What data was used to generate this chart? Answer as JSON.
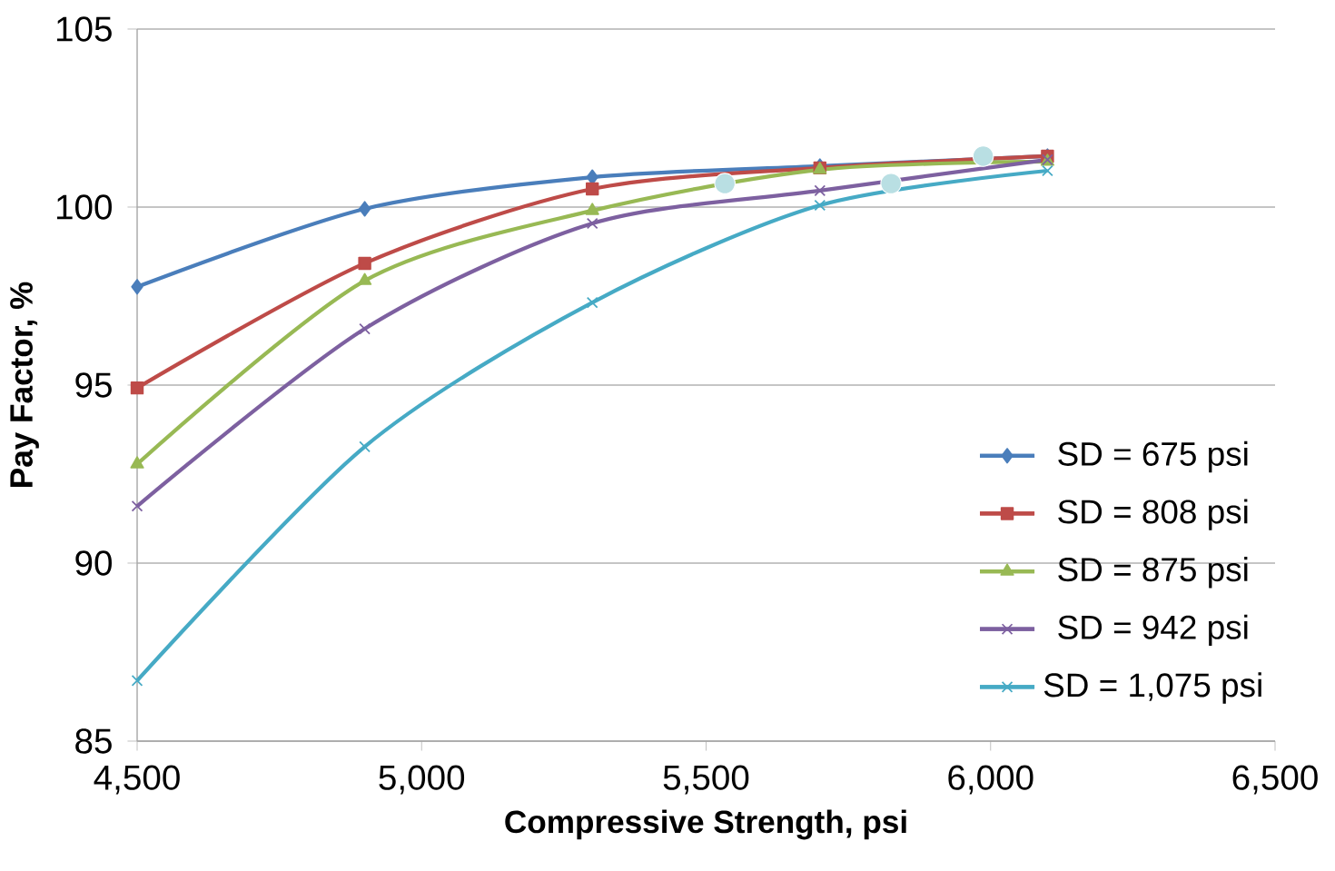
{
  "chart_data": {
    "type": "line",
    "xlabel": "Compressive Strength, psi",
    "ylabel": "Pay Factor, %",
    "x": [
      4500,
      4900,
      5300,
      5700,
      6100
    ],
    "series": [
      {
        "name": "SD = 675 psi",
        "color": "#4a7ebb",
        "marker": "diamond",
        "values": [
          97.76,
          99.95,
          100.84,
          101.15,
          101.43
        ]
      },
      {
        "name": "SD = 808 psi",
        "color": "#be4b48",
        "marker": "square",
        "values": [
          94.92,
          98.42,
          100.51,
          101.1,
          101.43
        ]
      },
      {
        "name": "SD = 875 psi",
        "color": "#98b954",
        "marker": "triangle",
        "values": [
          92.78,
          97.93,
          99.9,
          101.05,
          101.28
        ]
      },
      {
        "name": "SD = 942 psi",
        "color": "#7d60a0",
        "marker": "cross",
        "values": [
          91.6,
          96.58,
          99.54,
          100.46,
          101.33
        ]
      },
      {
        "name": "SD = 1,075 psi",
        "color": "#46aac5",
        "marker": "cross",
        "values": [
          86.7,
          93.27,
          97.32,
          100.05,
          101.02
        ]
      },
      {
        "type": "scatter",
        "color": "#b9dfe3",
        "marker": "circle",
        "x": [
          5533,
          5825,
          5987
        ],
        "values": [
          100.66,
          100.66,
          101.43
        ]
      }
    ],
    "xlim": [
      4500,
      6500
    ],
    "ylim": [
      85,
      105
    ],
    "xticks": [
      {
        "value": 4500,
        "label": "4,500"
      },
      {
        "value": 5000,
        "label": "5,000"
      },
      {
        "value": 5500,
        "label": "5,500"
      },
      {
        "value": 6000,
        "label": "6,000"
      },
      {
        "value": 6500,
        "label": "6,500"
      }
    ],
    "yticks": [
      85,
      90,
      95,
      100,
      105
    ],
    "grid": "y",
    "legend": "right",
    "line_style": "solid"
  }
}
